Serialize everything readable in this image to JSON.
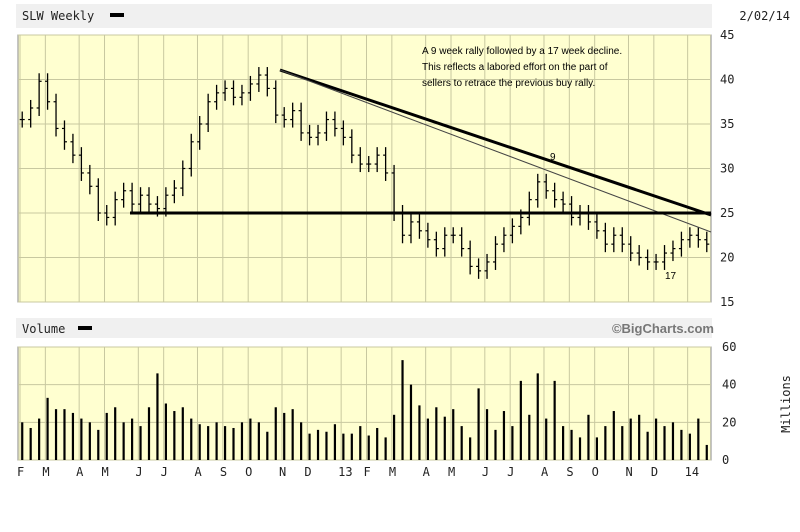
{
  "header": {
    "symbol_label": "SLW Weekly",
    "date": "2/02/14"
  },
  "volume_header": {
    "label": "Volume",
    "brand": "©BigCharts.com",
    "unit": "Millions"
  },
  "annotation": {
    "lines": [
      "A 9 week rally followed by a 17 week decline.",
      "This reflects a labored effort on the part of",
      "sellers to retrace the previous buy rally."
    ],
    "label_9": "9",
    "label_17": "17"
  },
  "colors": {
    "plot_bg": "#ffffd0",
    "grid": "#c8c8a0",
    "bars": "#000000"
  },
  "chart_data": [
    {
      "type": "line",
      "name": "price",
      "ylim": [
        15,
        45
      ],
      "y_ticks": [
        15,
        20,
        25,
        30,
        35,
        40,
        45
      ],
      "x_labels": [
        "F",
        "M",
        "A",
        "M",
        "J",
        "J",
        "A",
        "S",
        "O",
        "N",
        "D",
        "13",
        "F",
        "M",
        "A",
        "M",
        "J",
        "J",
        "A",
        "S",
        "O",
        "N",
        "D",
        "14"
      ],
      "values": [
        35.5,
        36.8,
        39.8,
        37.5,
        34.5,
        33,
        31.5,
        29.5,
        28,
        25,
        24.5,
        26.5,
        27.5,
        26,
        27,
        26,
        25.5,
        27,
        27.8,
        30,
        33,
        35,
        37.5,
        38.5,
        39,
        38,
        38.5,
        39.5,
        40.5,
        39,
        36,
        35.5,
        36.5,
        34,
        33.5,
        34,
        35.5,
        34.5,
        33.5,
        31.5,
        30.5,
        30.5,
        31.5,
        29.5,
        25,
        22.5,
        24,
        23,
        22,
        21,
        22.5,
        22.5,
        21,
        19,
        18.5,
        19.5,
        21.5,
        22.5,
        23.5,
        24.5,
        26.5,
        28.5,
        27.5,
        26.5,
        26,
        24.5,
        25,
        24,
        23,
        21.5,
        22.5,
        21.5,
        20.5,
        20,
        19.5,
        19.5,
        20.5,
        21,
        22,
        22.5,
        22,
        21.5
      ]
    },
    {
      "type": "bar",
      "name": "volume",
      "ylim": [
        0,
        60
      ],
      "y_ticks": [
        0,
        20,
        40,
        60
      ],
      "values": [
        20,
        17,
        22,
        33,
        27,
        27,
        25,
        22,
        20,
        16,
        25,
        28,
        20,
        22,
        18,
        28,
        46,
        30,
        26,
        28,
        22,
        19,
        18,
        20,
        18,
        17,
        20,
        22,
        20,
        15,
        28,
        25,
        27,
        20,
        14,
        16,
        15,
        19,
        14,
        14,
        18,
        13,
        17,
        12,
        24,
        53,
        40,
        29,
        22,
        28,
        23,
        27,
        18,
        12,
        38,
        27,
        16,
        26,
        18,
        42,
        24,
        46,
        22,
        42,
        18,
        16,
        12,
        24,
        12,
        18,
        26,
        18,
        22,
        24,
        15,
        22,
        18,
        20,
        16,
        14,
        22,
        8
      ]
    }
  ]
}
